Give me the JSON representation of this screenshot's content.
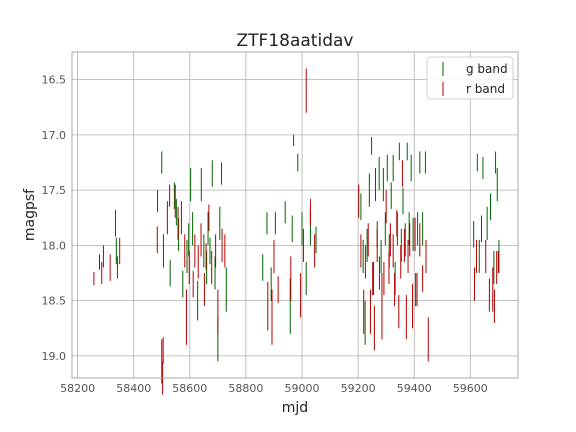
{
  "chart_data": {
    "type": "scatter",
    "title": "ZTF18aatidav",
    "xlabel": "mjd",
    "ylabel": "magpsf",
    "xlim": [
      58180,
      59770
    ],
    "ylim": [
      19.2,
      16.25
    ],
    "y_inverted": true,
    "grid": true,
    "legend_position": "top-right",
    "x_ticks": [
      58200,
      58400,
      58600,
      58800,
      59000,
      59200,
      59400,
      59600
    ],
    "y_ticks": [
      16.5,
      17.0,
      17.5,
      18.0,
      18.5,
      19.0
    ],
    "marker": "vertical error bars",
    "series": [
      {
        "name": "g band",
        "color": "#006400",
        "points": [
          [
            58335,
            17.8,
            0.12
          ],
          [
            58338,
            18.05,
            0.12
          ],
          [
            58342,
            18.2,
            0.1
          ],
          [
            58485,
            17.6,
            0.1
          ],
          [
            58500,
            17.25,
            0.1
          ],
          [
            58506,
            18.05,
            0.15
          ],
          [
            58530,
            18.25,
            0.12
          ],
          [
            58545,
            17.55,
            0.12
          ],
          [
            58552,
            17.7,
            0.12
          ],
          [
            58560,
            17.9,
            0.15
          ],
          [
            58575,
            18.35,
            0.12
          ],
          [
            58590,
            18.1,
            0.15
          ],
          [
            58596,
            17.95,
            0.15
          ],
          [
            58603,
            17.45,
            0.15
          ],
          [
            58610,
            17.85,
            0.15
          ],
          [
            58628,
            18.5,
            0.18
          ],
          [
            58641,
            17.45,
            0.15
          ],
          [
            58650,
            18.05,
            0.15
          ],
          [
            58660,
            18.2,
            0.15
          ],
          [
            58665,
            17.85,
            0.15
          ],
          [
            58672,
            18.05,
            0.12
          ],
          [
            58680,
            17.35,
            0.12
          ],
          [
            58690,
            18.25,
            0.15
          ],
          [
            58700,
            18.85,
            0.2
          ],
          [
            58707,
            17.8,
            0.15
          ],
          [
            58713,
            17.35,
            0.1
          ],
          [
            58730,
            18.4,
            0.2
          ],
          [
            58860,
            18.2,
            0.12
          ],
          [
            58875,
            17.8,
            0.1
          ],
          [
            58890,
            18.35,
            0.15
          ],
          [
            58905,
            17.8,
            0.1
          ],
          [
            58940,
            17.7,
            0.1
          ],
          [
            58958,
            18.55,
            0.25
          ],
          [
            58965,
            17.85,
            0.12
          ],
          [
            58970,
            17.05,
            0.05
          ],
          [
            58985,
            17.25,
            0.08
          ],
          [
            59000,
            17.85,
            0.15
          ],
          [
            59015,
            18.3,
            0.15
          ],
          [
            59030,
            17.85,
            0.15
          ],
          [
            59050,
            17.95,
            0.12
          ],
          [
            59210,
            17.65,
            0.12
          ],
          [
            59218,
            18.1,
            0.15
          ],
          [
            59225,
            18.7,
            0.2
          ],
          [
            59232,
            18.0,
            0.15
          ],
          [
            59240,
            17.5,
            0.15
          ],
          [
            59248,
            17.1,
            0.08
          ],
          [
            59255,
            18.3,
            0.15
          ],
          [
            59262,
            17.45,
            0.15
          ],
          [
            59268,
            17.9,
            0.12
          ],
          [
            59275,
            17.35,
            0.15
          ],
          [
            59282,
            18.1,
            0.15
          ],
          [
            59290,
            17.45,
            0.15
          ],
          [
            59297,
            17.85,
            0.15
          ],
          [
            59304,
            17.3,
            0.12
          ],
          [
            59311,
            18.05,
            0.15
          ],
          [
            59318,
            17.55,
            0.12
          ],
          [
            59325,
            17.3,
            0.12
          ],
          [
            59332,
            18.3,
            0.15
          ],
          [
            59340,
            17.85,
            0.15
          ],
          [
            59347,
            17.15,
            0.08
          ],
          [
            59354,
            18.0,
            0.15
          ],
          [
            59360,
            17.6,
            0.12
          ],
          [
            59368,
            17.95,
            0.15
          ],
          [
            59375,
            17.15,
            0.08
          ],
          [
            59382,
            17.85,
            0.15
          ],
          [
            59389,
            17.3,
            0.12
          ],
          [
            59396,
            17.9,
            0.15
          ],
          [
            59405,
            18.4,
            0.15
          ],
          [
            59412,
            17.85,
            0.15
          ],
          [
            59420,
            17.25,
            0.1
          ],
          [
            59430,
            17.85,
            0.15
          ],
          [
            59440,
            17.25,
            0.1
          ],
          [
            59612,
            17.9,
            0.12
          ],
          [
            59625,
            17.25,
            0.08
          ],
          [
            59632,
            18.1,
            0.15
          ],
          [
            59645,
            17.3,
            0.1
          ],
          [
            59660,
            17.8,
            0.15
          ],
          [
            59672,
            17.65,
            0.12
          ],
          [
            59684,
            18.2,
            0.15
          ],
          [
            59690,
            17.25,
            0.1
          ],
          [
            59696,
            17.45,
            0.15
          ],
          [
            59702,
            18.1,
            0.15
          ]
        ]
      },
      {
        "name": "r band",
        "color": "#b20000",
        "points": [
          [
            58258,
            18.3,
            0.06
          ],
          [
            58278,
            18.15,
            0.07
          ],
          [
            58286,
            18.25,
            0.1
          ],
          [
            58292,
            18.1,
            0.1
          ],
          [
            58316,
            18.2,
            0.12
          ],
          [
            58350,
            18.05,
            0.12
          ],
          [
            58484,
            17.95,
            0.12
          ],
          [
            58500,
            19.05,
            0.2
          ],
          [
            58503,
            19.2,
            0.15
          ],
          [
            58505,
            18.95,
            0.12
          ],
          [
            58520,
            17.75,
            0.15
          ],
          [
            58528,
            17.55,
            0.1
          ],
          [
            58548,
            17.6,
            0.15
          ],
          [
            58558,
            17.8,
            0.15
          ],
          [
            58570,
            17.75,
            0.15
          ],
          [
            58582,
            18.05,
            0.15
          ],
          [
            58588,
            18.65,
            0.25
          ],
          [
            58598,
            18.2,
            0.15
          ],
          [
            58612,
            18.35,
            0.12
          ],
          [
            58618,
            18.05,
            0.15
          ],
          [
            58630,
            18.15,
            0.15
          ],
          [
            58640,
            17.95,
            0.15
          ],
          [
            58652,
            18.4,
            0.15
          ],
          [
            58658,
            18.1,
            0.12
          ],
          [
            58668,
            17.75,
            0.12
          ],
          [
            58678,
            18.2,
            0.15
          ],
          [
            58692,
            18.05,
            0.15
          ],
          [
            58700,
            18.6,
            0.2
          ],
          [
            58715,
            18.0,
            0.15
          ],
          [
            58725,
            18.05,
            0.15
          ],
          [
            58878,
            18.55,
            0.22
          ],
          [
            58893,
            18.65,
            0.25
          ],
          [
            58900,
            18.1,
            0.15
          ],
          [
            58915,
            18.4,
            0.12
          ],
          [
            58960,
            18.3,
            0.2
          ],
          [
            58995,
            18.45,
            0.2
          ],
          [
            59005,
            18.0,
            0.15
          ],
          [
            59015,
            16.6,
            0.2
          ],
          [
            59030,
            17.7,
            0.12
          ],
          [
            59045,
            18.05,
            0.15
          ],
          [
            59202,
            17.6,
            0.15
          ],
          [
            59210,
            18.05,
            0.15
          ],
          [
            59220,
            18.6,
            0.2
          ],
          [
            59226,
            18.15,
            0.15
          ],
          [
            59236,
            17.95,
            0.15
          ],
          [
            59244,
            18.6,
            0.2
          ],
          [
            59252,
            18.3,
            0.15
          ],
          [
            59258,
            18.75,
            0.2
          ],
          [
            59268,
            18.0,
            0.15
          ],
          [
            59276,
            18.25,
            0.15
          ],
          [
            59285,
            18.55,
            0.3
          ],
          [
            59292,
            18.3,
            0.15
          ],
          [
            59300,
            17.65,
            0.15
          ],
          [
            59310,
            18.2,
            0.15
          ],
          [
            59315,
            17.95,
            0.15
          ],
          [
            59325,
            18.05,
            0.15
          ],
          [
            59330,
            18.4,
            0.15
          ],
          [
            59338,
            17.8,
            0.12
          ],
          [
            59345,
            18.6,
            0.15
          ],
          [
            59352,
            18.15,
            0.15
          ],
          [
            59358,
            17.35,
            0.12
          ],
          [
            59365,
            18.0,
            0.15
          ],
          [
            59372,
            18.65,
            0.2
          ],
          [
            59378,
            18.1,
            0.15
          ],
          [
            59384,
            17.95,
            0.15
          ],
          [
            59394,
            18.55,
            0.2
          ],
          [
            59403,
            17.9,
            0.15
          ],
          [
            59410,
            18.4,
            0.15
          ],
          [
            59420,
            17.95,
            0.15
          ],
          [
            59430,
            18.3,
            0.12
          ],
          [
            59442,
            18.1,
            0.15
          ],
          [
            59450,
            18.85,
            0.2
          ],
          [
            59615,
            18.35,
            0.15
          ],
          [
            59622,
            18.1,
            0.15
          ],
          [
            59640,
            17.85,
            0.12
          ],
          [
            59655,
            18.1,
            0.15
          ],
          [
            59668,
            18.45,
            0.15
          ],
          [
            59680,
            18.4,
            0.2
          ],
          [
            59686,
            18.55,
            0.15
          ],
          [
            59694,
            18.2,
            0.15
          ],
          [
            59700,
            18.15,
            0.1
          ]
        ]
      }
    ]
  }
}
